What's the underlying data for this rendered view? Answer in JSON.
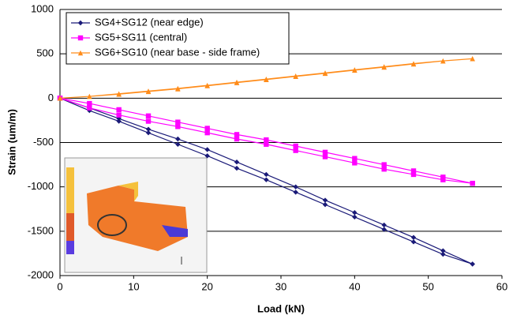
{
  "chart_data": {
    "type": "line",
    "x_label": "Load  (kN)",
    "y_label": "Strain  (um/m)",
    "x": [
      0,
      4,
      8,
      12,
      16,
      20,
      24,
      28,
      32,
      36,
      40,
      44,
      48,
      52,
      56,
      56,
      52,
      48,
      44,
      40,
      36,
      32,
      28,
      24,
      20,
      16,
      12,
      8,
      4,
      0
    ],
    "series": [
      {
        "name": "SG4+SG12 (near edge)",
        "color": "#1a1a78",
        "marker": "diamond",
        "values": [
          0,
          -110,
          -230,
          -350,
          -460,
          -580,
          -720,
          -860,
          -1000,
          -1150,
          -1290,
          -1430,
          -1570,
          -1720,
          -1870,
          -1870,
          -1760,
          -1620,
          -1480,
          -1340,
          -1200,
          -1060,
          -920,
          -790,
          -650,
          -520,
          -390,
          -260,
          -140,
          0
        ]
      },
      {
        "name": "SG5+SG11 (central)",
        "color": "#ff00ff",
        "marker": "square",
        "values": [
          0,
          -60,
          -130,
          -200,
          -270,
          -340,
          -410,
          -470,
          -540,
          -610,
          -680,
          -750,
          -820,
          -890,
          -960,
          -960,
          -920,
          -860,
          -800,
          -730,
          -660,
          -590,
          -520,
          -460,
          -390,
          -320,
          -260,
          -190,
          -110,
          0
        ]
      },
      {
        "name": "SG6+SG10 (near base - side frame)",
        "color": "#ff8c1a",
        "marker": "triangle",
        "values": [
          0,
          20,
          50,
          80,
          110,
          145,
          180,
          215,
          250,
          285,
          320,
          355,
          390,
          420,
          445,
          445,
          420,
          385,
          350,
          315,
          280,
          245,
          210,
          175,
          140,
          105,
          75,
          45,
          20,
          0
        ]
      }
    ],
    "xlim": [
      0,
      60
    ],
    "xticks": [
      0,
      10,
      20,
      30,
      40,
      50,
      60
    ],
    "ylim": [
      -2000,
      1000
    ],
    "yticks": [
      -2000,
      -1500,
      -1000,
      -500,
      0,
      500,
      1000
    ],
    "grid": true,
    "legend": "top-left"
  }
}
